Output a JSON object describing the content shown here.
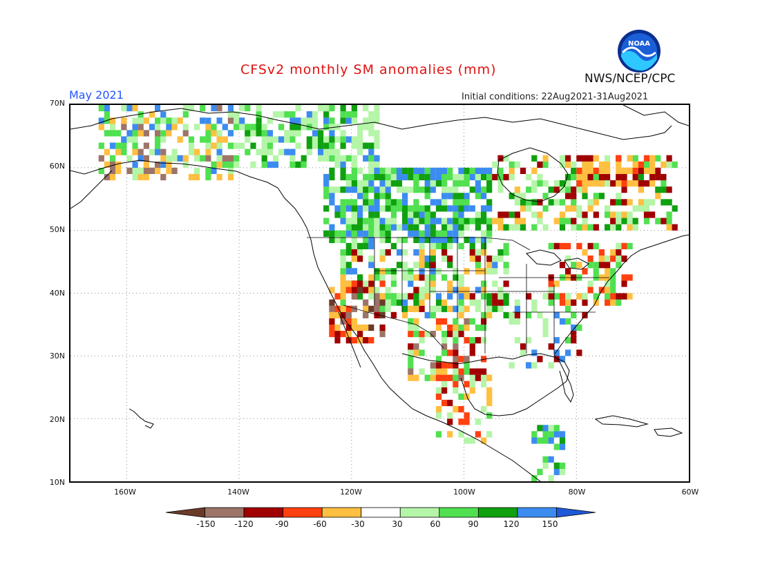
{
  "header": {
    "title": "CFSv2 monthly SM anomalies (mm)",
    "period": "May 2021",
    "initial_conditions": "Initial conditions: 22Aug2021-31Aug2021",
    "agency": "NWS/NCEP/CPC",
    "logo_text": "NOAA"
  },
  "map": {
    "lat_labels": [
      "70N",
      "60N",
      "50N",
      "40N",
      "30N",
      "20N",
      "10N"
    ],
    "lon_labels": [
      "160W",
      "140W",
      "120W",
      "100W",
      "80W",
      "60W"
    ],
    "lat_range": [
      10,
      70
    ],
    "lon_range": [
      -170,
      -60
    ],
    "grid": "dotted"
  },
  "legend": {
    "ticks": [
      "-150",
      "-120",
      "-90",
      "-60",
      "-30",
      "30",
      "60",
      "90",
      "120",
      "150"
    ],
    "bins": [
      {
        "range": "< -150",
        "color": "#6b3b2a"
      },
      {
        "range": "-150 to -120",
        "color": "#9c7468"
      },
      {
        "range": "-120 to -90",
        "color": "#a00000"
      },
      {
        "range": "-90 to -60",
        "color": "#ff4010"
      },
      {
        "range": "-60 to -30",
        "color": "#ffbf40"
      },
      {
        "range": "-30 to 30",
        "color": "#ffffff"
      },
      {
        "range": "30 to 60",
        "color": "#b4f5a8"
      },
      {
        "range": "60 to 90",
        "color": "#50e050"
      },
      {
        "range": "90 to 120",
        "color": "#10a010"
      },
      {
        "range": "120 to 150",
        "color": "#3c8cf0"
      },
      {
        "range": "> 150",
        "color": "#1e5ad8"
      }
    ]
  }
}
